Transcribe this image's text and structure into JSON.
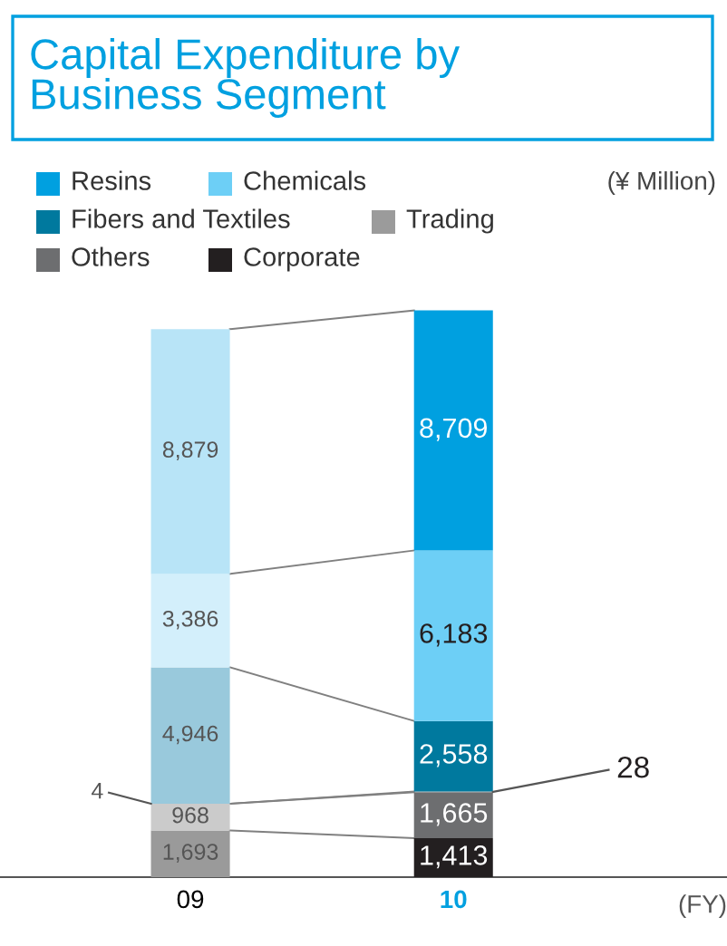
{
  "chart_data": {
    "type": "bar",
    "title": "Capital Expenditure by\nBusiness Segment",
    "xlabel": "(FY)",
    "annotations": [
      "(¥ Million)"
    ],
    "categories": [
      "09",
      "10"
    ],
    "stacked": true,
    "legend": "top",
    "tick_labels": "x",
    "series": [
      {
        "name": "Corporate",
        "color": "#231f20",
        "colors": [
          "#9a9a9a",
          "#231f20"
        ],
        "values": [
          1693,
          1413
        ],
        "value_labels": [
          "1,693",
          "1,413"
        ]
      },
      {
        "name": "Others",
        "color": "#6d6e70",
        "colors": [
          "#cbcbcb",
          "#6d6e70"
        ],
        "values": [
          968,
          1665
        ],
        "value_labels": [
          "968",
          "1,665"
        ]
      },
      {
        "name": "Trading",
        "color": "#9b9b9b",
        "colors": [
          "#e0e0e0",
          "#9b9b9b"
        ],
        "values": [
          4,
          28
        ],
        "value_labels": [
          "4",
          "28"
        ]
      },
      {
        "name": "Fibers and Textiles",
        "color": "#00799e",
        "colors": [
          "#99c9dc",
          "#00799e"
        ],
        "values": [
          4946,
          2558
        ],
        "value_labels": [
          "4,946",
          "2,558"
        ]
      },
      {
        "name": "Chemicals",
        "color": "#6dcff6",
        "colors": [
          "#d3effb",
          "#6dcff6"
        ],
        "values": [
          3386,
          6183
        ],
        "value_labels": [
          "3,386",
          "6,183"
        ]
      },
      {
        "name": "Resins",
        "color": "#00a0e0",
        "colors": [
          "#b8e4f7",
          "#00a0e0"
        ],
        "values": [
          8879,
          8709
        ],
        "value_labels": [
          "8,879",
          "8,709"
        ]
      }
    ]
  }
}
